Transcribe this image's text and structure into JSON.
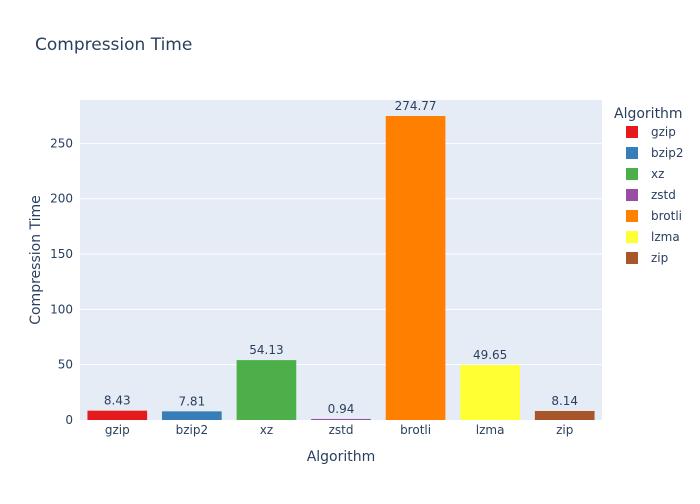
{
  "chart_data": {
    "type": "bar",
    "title": "Compression Time",
    "xlabel": "Algorithm",
    "ylabel": "Compression Time",
    "categories": [
      "gzip",
      "bzip2",
      "xz",
      "zstd",
      "brotli",
      "lzma",
      "zip"
    ],
    "values": [
      8.43,
      7.81,
      54.13,
      0.94,
      274.77,
      49.65,
      8.14
    ],
    "value_labels": [
      "8.43",
      "7.81",
      "54.13",
      "0.94",
      "274.77",
      "49.65",
      "8.14"
    ],
    "colors": [
      "#e41a1c",
      "#377eb8",
      "#4daf4a",
      "#984ea3",
      "#ff7f00",
      "#ffff33",
      "#a65628"
    ],
    "ylim": [
      0,
      289.23
    ],
    "yticks": [
      0,
      50,
      100,
      150,
      200,
      250
    ],
    "legend": {
      "title": "Algorithm",
      "placement": "right",
      "entries": [
        "gzip",
        "bzip2",
        "xz",
        "zstd",
        "brotli",
        "lzma",
        "zip"
      ]
    },
    "grid": true,
    "plot_background": "#e5ecf6"
  }
}
